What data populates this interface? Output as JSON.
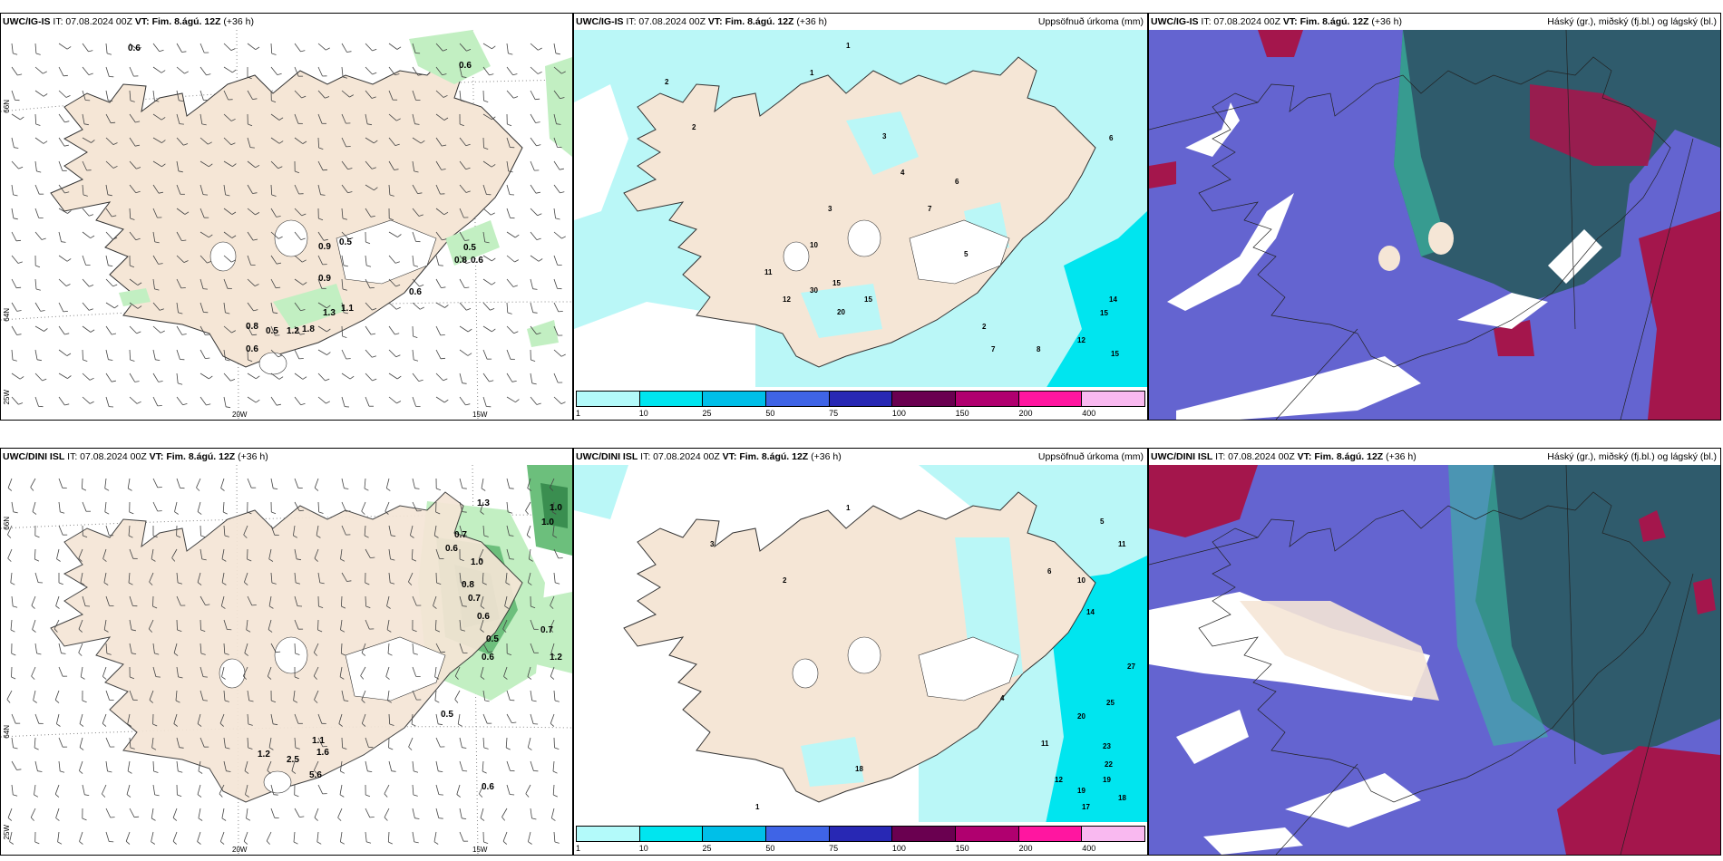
{
  "panels": [
    {
      "id": "top-left",
      "model": "UWC/IG-IS",
      "it": "IT: 07.08.2024 00Z",
      "vt_label": "VT:",
      "vt": "Fim. 8.ágú. 12Z",
      "lead": "(+36 h)",
      "right_title": "",
      "labels": [
        "0.6",
        "0.6",
        "0.9",
        "0.5",
        "0.9",
        "0.5",
        "0.8",
        "0.6",
        "1.1",
        "1.3",
        "0.6",
        "0.8",
        "0.5",
        "1.2",
        "1.8",
        "0.6"
      ],
      "axis": {
        "lat_left_top": "66N",
        "lat_left_bottom": "64N",
        "lon_bottom_left": "25W",
        "lon_mid": "20W",
        "lon_right": "15W"
      }
    },
    {
      "id": "top-middle",
      "model": "UWC/IG-IS",
      "it": "IT: 07.08.2024 00Z",
      "vt_label": "VT:",
      "vt": "Fim. 8.ágú. 12Z",
      "lead": "(+36 h)",
      "right_title": "Uppsöfnuð úrkoma (mm)",
      "labels": [
        "1",
        "1",
        "2",
        "2",
        "3",
        "4",
        "6",
        "7",
        "3",
        "10",
        "11",
        "12",
        "30",
        "15",
        "20",
        "15",
        "5",
        "6",
        "14",
        "15",
        "12",
        "15",
        "8",
        "7",
        "2"
      ]
    },
    {
      "id": "top-right",
      "model": "UWC/IG-IS",
      "it": "IT: 07.08.2024 00Z",
      "vt_label": "VT:",
      "vt": "Fim. 8.ágú. 12Z",
      "lead": "(+36 h)",
      "right_title": "Háský (gr.), miðský (fj.bl.) og lágský (bl.)"
    },
    {
      "id": "bottom-left",
      "model": "UWC/DINI ISL",
      "it": "IT: 07.08.2024 00Z",
      "vt_label": "VT:",
      "vt": "Fim. 8.ágú. 12Z",
      "lead": "(+36 h)",
      "right_title": "",
      "labels": [
        "1.3",
        "1.0",
        "1.0",
        "0.6",
        "0.7",
        "1.0",
        "0.8",
        "0.7",
        "0.6",
        "0.5",
        "0.6",
        "0.7",
        "1.2",
        "0.5",
        "1.1",
        "1.6",
        "5.6",
        "2.5",
        "1.2",
        "0.6"
      ],
      "axis": {
        "lat_left_top": "66N",
        "lat_left_bottom": "64N",
        "lon_bottom_left": "25W",
        "lon_mid": "20W",
        "lon_right": "15W"
      }
    },
    {
      "id": "bottom-middle",
      "model": "UWC/DINI ISL",
      "it": "IT: 07.08.2024 00Z",
      "vt_label": "VT:",
      "vt": "Fim. 8.ágú. 12Z",
      "lead": "(+36 h)",
      "right_title": "Uppsöfnuð úrkoma (mm)",
      "labels": [
        "1",
        "2",
        "3",
        "5",
        "6",
        "10",
        "11",
        "14",
        "27",
        "25",
        "20",
        "23",
        "22",
        "19",
        "19",
        "17",
        "18",
        "12",
        "11",
        "18",
        "4",
        "1"
      ]
    },
    {
      "id": "bottom-right",
      "model": "UWC/DINI ISL",
      "it": "IT: 07.08.2024 00Z",
      "vt_label": "VT:",
      "vt": "Fim. 8.ágú. 12Z",
      "lead": "(+36 h)",
      "right_title": "Háský (gr.), miðský (fj.bl.) og lágský (bl.)"
    }
  ],
  "legend": {
    "labels": [
      "1",
      "10",
      "25",
      "50",
      "75",
      "100",
      "150",
      "200",
      "400"
    ],
    "colors": [
      "#b3fafa",
      "#00e5ef",
      "#00bfe8",
      "#3f64e6",
      "#2828b4",
      "#6a0050",
      "#b0006f",
      "#ff16a0",
      "#f9b9f0"
    ]
  },
  "colors": {
    "land": "#f5e6d6",
    "precip_light": "#baf7f7",
    "cloud_low": "#6464d0",
    "cloud_mid": "#2a5a63",
    "cloud_high": "#a4164c",
    "green_light": "#c2efc2",
    "green_dark": "#3a8e50"
  }
}
